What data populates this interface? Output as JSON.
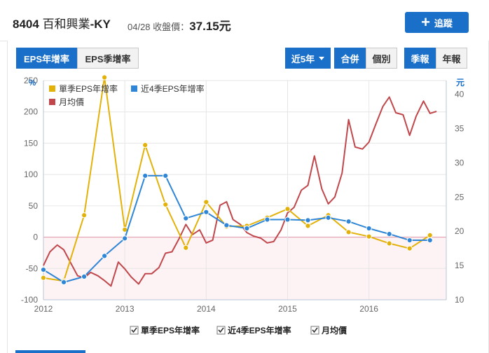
{
  "header": {
    "code": "8404",
    "name": "百和興業",
    "suffix": "-KY",
    "date": "04/28",
    "close_label": "收盤價：",
    "price": "37.15",
    "price_unit": "元",
    "track_label": "追蹤"
  },
  "tabs": {
    "eps_year": "EPS年增率",
    "eps_quarter": "EPS季增率"
  },
  "controls": {
    "range": "近5年",
    "consolidated": "合併",
    "individual": "個別",
    "quarterly": "季報",
    "annual": "年報"
  },
  "colors": {
    "quarter_eps": "#e3b20a",
    "four_q_eps": "#2f86d6",
    "monthly_price": "#c0474b",
    "accent": "#1a6fc9"
  },
  "chart_data": {
    "type": "line",
    "left_axis_unit": "%",
    "right_axis_unit": "元",
    "left_ylim": [
      -100,
      250
    ],
    "left_ticks": [
      "250",
      "200",
      "150",
      "100",
      "50",
      "0",
      "-50",
      "-100"
    ],
    "right_ylim": [
      10,
      42
    ],
    "right_ticks": [
      "40",
      "35",
      "30",
      "25",
      "20",
      "15",
      "10"
    ],
    "x_ticks": [
      "2012",
      "2013",
      "2014",
      "2015",
      "2016"
    ],
    "grid": true,
    "legend_position": "top-left",
    "series": [
      {
        "name": "單季EPS年增率",
        "axis": "left",
        "points": [
          [
            2012.0,
            -65
          ],
          [
            2012.25,
            -70
          ],
          [
            2012.5,
            35
          ],
          [
            2012.75,
            255
          ],
          [
            2013.0,
            12
          ],
          [
            2013.25,
            147
          ],
          [
            2013.5,
            52
          ],
          [
            2013.75,
            -17
          ],
          [
            2014.0,
            56
          ],
          [
            2014.25,
            17
          ],
          [
            2014.5,
            18
          ],
          [
            2014.75,
            31
          ],
          [
            2015.0,
            45
          ],
          [
            2015.25,
            18
          ],
          [
            2015.5,
            35
          ],
          [
            2015.75,
            8
          ],
          [
            2016.0,
            1
          ],
          [
            2016.25,
            -10
          ],
          [
            2016.5,
            -18
          ],
          [
            2016.75,
            3
          ]
        ]
      },
      {
        "name": "近4季EPS年增率",
        "axis": "left",
        "points": [
          [
            2012.0,
            -52
          ],
          [
            2012.25,
            -72
          ],
          [
            2012.5,
            -63
          ],
          [
            2012.75,
            -30
          ],
          [
            2013.0,
            -2
          ],
          [
            2013.25,
            98
          ],
          [
            2013.5,
            98
          ],
          [
            2013.75,
            30
          ],
          [
            2014.0,
            40
          ],
          [
            2014.25,
            19
          ],
          [
            2014.5,
            14
          ],
          [
            2014.75,
            28
          ],
          [
            2015.0,
            28
          ],
          [
            2015.25,
            27
          ],
          [
            2015.5,
            31
          ],
          [
            2015.75,
            25
          ],
          [
            2016.0,
            14
          ],
          [
            2016.25,
            5
          ],
          [
            2016.5,
            -5
          ],
          [
            2016.75,
            -5
          ]
        ]
      },
      {
        "name": "月均價",
        "axis": "right",
        "points": [
          [
            2012.0,
            15.0
          ],
          [
            2012.08,
            17.0
          ],
          [
            2012.17,
            18.0
          ],
          [
            2012.25,
            17.3
          ],
          [
            2012.33,
            15.5
          ],
          [
            2012.42,
            13.5
          ],
          [
            2012.5,
            13.2
          ],
          [
            2012.58,
            14.0
          ],
          [
            2012.67,
            13.5
          ],
          [
            2012.75,
            12.8
          ],
          [
            2012.83,
            12.0
          ],
          [
            2012.92,
            15.5
          ],
          [
            2013.0,
            14.5
          ],
          [
            2013.08,
            13.3
          ],
          [
            2013.17,
            12.3
          ],
          [
            2013.25,
            13.8
          ],
          [
            2013.33,
            13.8
          ],
          [
            2013.42,
            14.7
          ],
          [
            2013.5,
            16.8
          ],
          [
            2013.58,
            17.0
          ],
          [
            2013.67,
            19.0
          ],
          [
            2013.75,
            21.0
          ],
          [
            2013.83,
            19.5
          ],
          [
            2013.92,
            20.2
          ],
          [
            2014.0,
            18.3
          ],
          [
            2014.08,
            18.7
          ],
          [
            2014.17,
            23.8
          ],
          [
            2014.25,
            24.3
          ],
          [
            2014.33,
            21.7
          ],
          [
            2014.42,
            21.0
          ],
          [
            2014.5,
            19.8
          ],
          [
            2014.58,
            19.3
          ],
          [
            2014.67,
            19.0
          ],
          [
            2014.75,
            18.3
          ],
          [
            2014.83,
            18.5
          ],
          [
            2014.92,
            20.2
          ],
          [
            2015.0,
            22.7
          ],
          [
            2015.08,
            23.5
          ],
          [
            2015.17,
            26.0
          ],
          [
            2015.25,
            26.7
          ],
          [
            2015.33,
            31.0
          ],
          [
            2015.42,
            26.2
          ],
          [
            2015.5,
            24.0
          ],
          [
            2015.58,
            25.0
          ],
          [
            2015.67,
            28.5
          ],
          [
            2015.75,
            36.3
          ],
          [
            2015.83,
            32.3
          ],
          [
            2015.92,
            32.0
          ],
          [
            2016.0,
            33.0
          ],
          [
            2016.08,
            35.5
          ],
          [
            2016.17,
            38.2
          ],
          [
            2016.25,
            39.6
          ],
          [
            2016.33,
            37.3
          ],
          [
            2016.42,
            37.0
          ],
          [
            2016.5,
            34.0
          ],
          [
            2016.58,
            36.8
          ],
          [
            2016.67,
            39.0
          ],
          [
            2016.75,
            37.2
          ],
          [
            2016.83,
            37.5
          ]
        ]
      }
    ]
  }
}
